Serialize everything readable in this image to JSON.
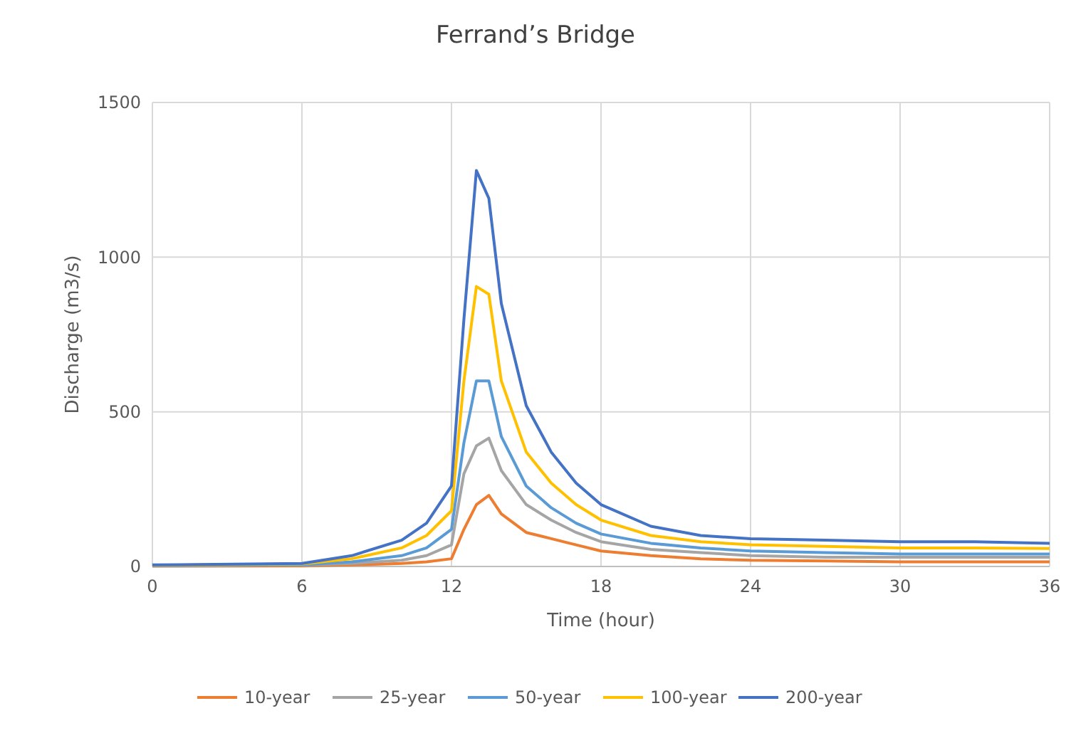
{
  "chart_data": {
    "type": "line",
    "title": "Ferrand’s Bridge",
    "xlabel": "Time (hour)",
    "ylabel": "Discharge (m3/s)",
    "x": [
      0,
      6,
      8,
      10,
      11,
      12,
      12.5,
      13,
      13.5,
      14,
      15,
      16,
      17,
      18,
      20,
      22,
      24,
      27,
      30,
      33,
      36
    ],
    "series": [
      {
        "name": "10-year",
        "color": "#ed7d31",
        "values": [
          1,
          2,
          5,
          10,
          15,
          25,
          120,
          200,
          230,
          170,
          110,
          90,
          70,
          50,
          35,
          25,
          20,
          18,
          15,
          15,
          15
        ]
      },
      {
        "name": "25-year",
        "color": "#a5a5a5",
        "values": [
          2,
          4,
          10,
          20,
          35,
          70,
          300,
          390,
          415,
          310,
          200,
          150,
          110,
          80,
          55,
          45,
          35,
          30,
          30,
          30,
          30
        ]
      },
      {
        "name": "50-year",
        "color": "#5b9bd5",
        "values": [
          3,
          5,
          15,
          35,
          60,
          120,
          400,
          600,
          600,
          420,
          260,
          190,
          140,
          105,
          75,
          60,
          50,
          45,
          40,
          40,
          40
        ]
      },
      {
        "name": "100-year",
        "color": "#ffc000",
        "values": [
          4,
          8,
          25,
          60,
          100,
          180,
          600,
          905,
          880,
          600,
          370,
          270,
          200,
          150,
          100,
          80,
          70,
          65,
          60,
          60,
          58
        ]
      },
      {
        "name": "200-year",
        "color": "#4472c4",
        "values": [
          5,
          10,
          35,
          85,
          140,
          260,
          800,
          1280,
          1190,
          850,
          520,
          370,
          270,
          200,
          130,
          100,
          90,
          85,
          80,
          80,
          75
        ]
      }
    ],
    "xlim": [
      0,
      36
    ],
    "xticks": [
      0,
      6,
      12,
      18,
      24,
      30,
      36
    ],
    "ylim": [
      0,
      1500
    ],
    "yticks": [
      0,
      500,
      1000,
      1500
    ],
    "grid": true,
    "legend": "bottom",
    "marker": "none",
    "line_style": "solid"
  }
}
